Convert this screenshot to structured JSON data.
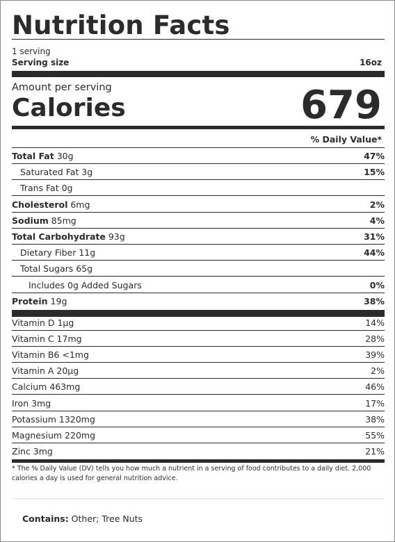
{
  "title": "Nutrition Facts",
  "servings": "1 serving",
  "serving_size_label": "Serving size",
  "serving_size_value": "16oz",
  "amount_per_serving": "Amount per serving",
  "calories_label": "Calories",
  "calories_value": "679",
  "daily_value_header": "% Daily Value*",
  "nutrients": [
    {
      "bold": "Total Fat",
      "amount": " 30g",
      "dv": "47%"
    },
    {
      "bold": "",
      "amount": "Saturated Fat 3g",
      "dv": "15%"
    },
    {
      "bold": "",
      "amount": "Trans Fat 0g",
      "dv": ""
    },
    {
      "bold": "Cholesterol",
      "amount": " 6mg",
      "dv": "2%"
    },
    {
      "bold": "Sodium",
      "amount": " 85mg",
      "dv": "4%"
    },
    {
      "bold": "Total Carbohydrate",
      "amount": " 93g",
      "dv": "31%"
    },
    {
      "bold": "",
      "amount": "Dietary Fiber 11g",
      "dv": "44%"
    },
    {
      "bold": "",
      "amount": "Total Sugars 65g",
      "dv": ""
    },
    {
      "bold": "",
      "amount": "Includes 0g Added Sugars",
      "dv": "0%"
    },
    {
      "bold": "Protein",
      "amount": " 19g",
      "dv": "38%"
    }
  ],
  "vitamins": [
    {
      "name": "Vitamin D 1µg",
      "dv": "14%"
    },
    {
      "name": "Vitamin C 17mg",
      "dv": "28%"
    },
    {
      "name": "Vitamin B6 <1mg",
      "dv": "39%"
    },
    {
      "name": "Vitamin A 20µg",
      "dv": "2%"
    },
    {
      "name": "Calcium 463mg",
      "dv": "46%"
    },
    {
      "name": "Iron 3mg",
      "dv": "17%"
    },
    {
      "name": "Potassium 1320mg",
      "dv": "38%"
    },
    {
      "name": "Magnesium 220mg",
      "dv": "55%"
    },
    {
      "name": "Zinc 3mg",
      "dv": "21%"
    }
  ],
  "footnote": "*  The % Daily Value (DV) tells you how much a nutrient in a serving of food contributes to a daily diet. 2,000 calories a day is used for general nutrition advice.",
  "contains_label": "Contains:",
  "contains_value": " Other; Tree Nuts"
}
